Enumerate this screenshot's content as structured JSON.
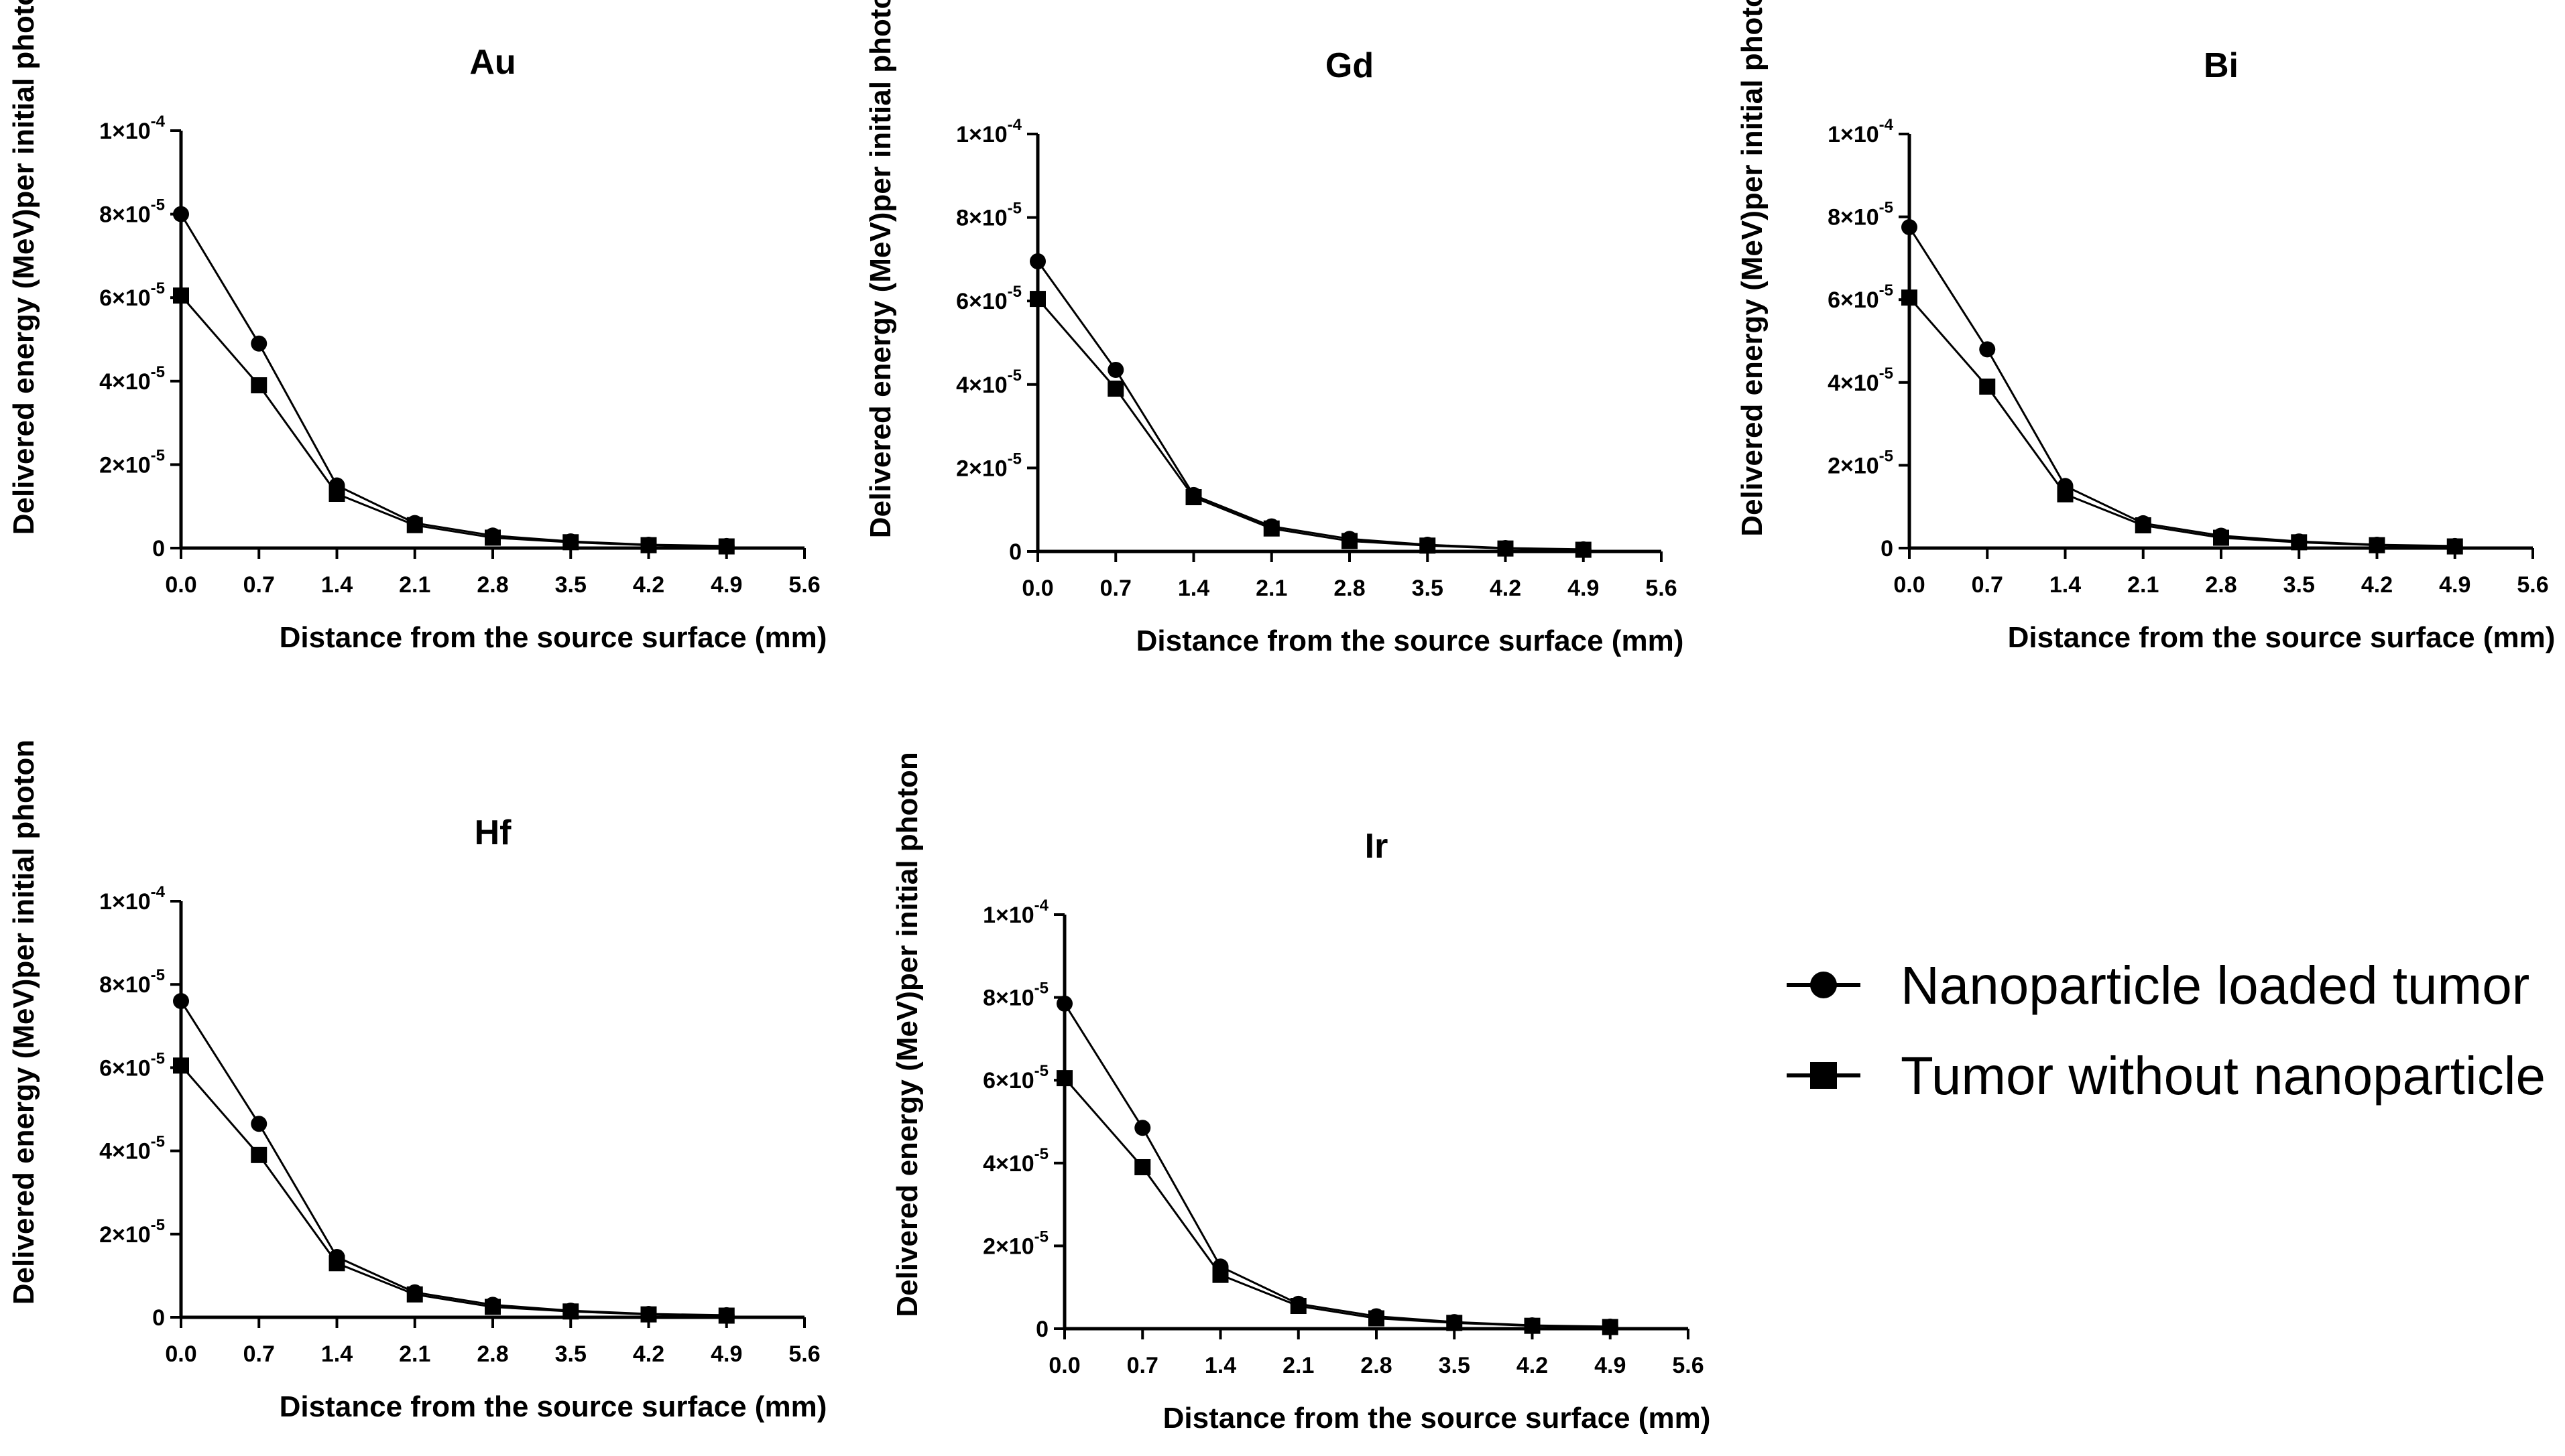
{
  "chart_data": [
    {
      "type": "line",
      "title": "Au",
      "xlabel": "Distance from the source surface (mm)",
      "ylabel": "Delivered energy (MeV)per initial photon",
      "x": [
        0.0,
        0.7,
        1.4,
        2.1,
        2.8,
        3.5,
        4.2,
        4.9
      ],
      "xticks": [
        "0.0",
        "0.7",
        "1.4",
        "2.1",
        "2.8",
        "3.5",
        "4.2",
        "4.9",
        "5.6"
      ],
      "xlim": [
        0,
        5.6
      ],
      "yticks": [
        {
          "base": "1×10",
          "exp": "-4"
        },
        {
          "base": "8×10",
          "exp": "-5"
        },
        {
          "base": "6×10",
          "exp": "-5"
        },
        {
          "base": "4×10",
          "exp": "-5"
        },
        {
          "base": "2×10",
          "exp": "-5"
        },
        {
          "base": "0",
          "exp": ""
        }
      ],
      "ylim": [
        0,
        0.0001
      ],
      "series": [
        {
          "name": "Nanoparticle loaded tumor",
          "marker": "circle",
          "values": [
            8e-05,
            4.9e-05,
            1.5e-05,
            6e-06,
            3e-06,
            1.6e-06,
            8e-07,
            5e-07
          ]
        },
        {
          "name": "Tumor without nanoparticle",
          "marker": "square",
          "values": [
            6.05e-05,
            3.9e-05,
            1.3e-05,
            5.5e-06,
            2.5e-06,
            1.4e-06,
            7e-07,
            4e-07
          ]
        }
      ]
    },
    {
      "type": "line",
      "title": "Gd",
      "xlabel": "Distance from the source surface (mm)",
      "ylabel": "Delivered energy (MeV)per initial photon",
      "x": [
        0.0,
        0.7,
        1.4,
        2.1,
        2.8,
        3.5,
        4.2,
        4.9
      ],
      "xticks": [
        "0.0",
        "0.7",
        "1.4",
        "2.1",
        "2.8",
        "3.5",
        "4.2",
        "4.9",
        "5.6"
      ],
      "xlim": [
        0,
        5.6
      ],
      "yticks": [
        {
          "base": "1×10",
          "exp": "-4"
        },
        {
          "base": "8×10",
          "exp": "-5"
        },
        {
          "base": "6×10",
          "exp": "-5"
        },
        {
          "base": "4×10",
          "exp": "-5"
        },
        {
          "base": "2×10",
          "exp": "-5"
        },
        {
          "base": "0",
          "exp": ""
        }
      ],
      "ylim": [
        0,
        0.0001
      ],
      "series": [
        {
          "name": "Nanoparticle loaded tumor",
          "marker": "circle",
          "values": [
            6.95e-05,
            4.35e-05,
            1.35e-05,
            6e-06,
            3e-06,
            1.6e-06,
            8e-07,
            5e-07
          ]
        },
        {
          "name": "Tumor without nanoparticle",
          "marker": "square",
          "values": [
            6.05e-05,
            3.9e-05,
            1.3e-05,
            5.5e-06,
            2.5e-06,
            1.4e-06,
            7e-07,
            4e-07
          ]
        }
      ]
    },
    {
      "type": "line",
      "title": "Bi",
      "xlabel": "Distance from the source surface (mm)",
      "ylabel": "Delivered energy (MeV)per initial photon",
      "x": [
        0.0,
        0.7,
        1.4,
        2.1,
        2.8,
        3.5,
        4.2,
        4.9
      ],
      "xticks": [
        "0.0",
        "0.7",
        "1.4",
        "2.1",
        "2.8",
        "3.5",
        "4.2",
        "4.9",
        "5.6"
      ],
      "xlim": [
        0,
        5.6
      ],
      "yticks": [
        {
          "base": "1×10",
          "exp": "-4"
        },
        {
          "base": "8×10",
          "exp": "-5"
        },
        {
          "base": "6×10",
          "exp": "-5"
        },
        {
          "base": "4×10",
          "exp": "-5"
        },
        {
          "base": "2×10",
          "exp": "-5"
        },
        {
          "base": "0",
          "exp": ""
        }
      ],
      "ylim": [
        0,
        0.0001
      ],
      "series": [
        {
          "name": "Nanoparticle loaded tumor",
          "marker": "circle",
          "values": [
            7.75e-05,
            4.8e-05,
            1.5e-05,
            6e-06,
            3e-06,
            1.6e-06,
            8e-07,
            5e-07
          ]
        },
        {
          "name": "Tumor without nanoparticle",
          "marker": "square",
          "values": [
            6.05e-05,
            3.9e-05,
            1.3e-05,
            5.5e-06,
            2.5e-06,
            1.4e-06,
            7e-07,
            4e-07
          ]
        }
      ]
    },
    {
      "type": "line",
      "title": "Hf",
      "xlabel": "Distance from the source surface (mm)",
      "ylabel": "Delivered energy (MeV)per initial photon",
      "x": [
        0.0,
        0.7,
        1.4,
        2.1,
        2.8,
        3.5,
        4.2,
        4.9
      ],
      "xticks": [
        "0.0",
        "0.7",
        "1.4",
        "2.1",
        "2.8",
        "3.5",
        "4.2",
        "4.9",
        "5.6"
      ],
      "xlim": [
        0,
        5.6
      ],
      "yticks": [
        {
          "base": "1×10",
          "exp": "-4"
        },
        {
          "base": "8×10",
          "exp": "-5"
        },
        {
          "base": "6×10",
          "exp": "-5"
        },
        {
          "base": "4×10",
          "exp": "-5"
        },
        {
          "base": "2×10",
          "exp": "-5"
        },
        {
          "base": "0",
          "exp": ""
        }
      ],
      "ylim": [
        0,
        0.0001
      ],
      "series": [
        {
          "name": "Nanoparticle loaded tumor",
          "marker": "circle",
          "values": [
            7.6e-05,
            4.65e-05,
            1.45e-05,
            6e-06,
            3e-06,
            1.6e-06,
            8e-07,
            5e-07
          ]
        },
        {
          "name": "Tumor without nanoparticle",
          "marker": "square",
          "values": [
            6.05e-05,
            3.9e-05,
            1.3e-05,
            5.5e-06,
            2.5e-06,
            1.4e-06,
            7e-07,
            4e-07
          ]
        }
      ]
    },
    {
      "type": "line",
      "title": "Ir",
      "xlabel": "Distance from the source surface (mm)",
      "ylabel": "Delivered energy (MeV)per initial photon",
      "x": [
        0.0,
        0.7,
        1.4,
        2.1,
        2.8,
        3.5,
        4.2,
        4.9
      ],
      "xticks": [
        "0.0",
        "0.7",
        "1.4",
        "2.1",
        "2.8",
        "3.5",
        "4.2",
        "4.9",
        "5.6"
      ],
      "xlim": [
        0,
        5.6
      ],
      "yticks": [
        {
          "base": "1×10",
          "exp": "-4"
        },
        {
          "base": "8×10",
          "exp": "-5"
        },
        {
          "base": "6×10",
          "exp": "-5"
        },
        {
          "base": "4×10",
          "exp": "-5"
        },
        {
          "base": "2×10",
          "exp": "-5"
        },
        {
          "base": "0",
          "exp": ""
        }
      ],
      "ylim": [
        0,
        0.0001
      ],
      "series": [
        {
          "name": "Nanoparticle loaded tumor",
          "marker": "circle",
          "values": [
            7.85e-05,
            4.85e-05,
            1.5e-05,
            6e-06,
            3e-06,
            1.6e-06,
            8e-07,
            5e-07
          ]
        },
        {
          "name": "Tumor without nanoparticle",
          "marker": "square",
          "values": [
            6.05e-05,
            3.9e-05,
            1.3e-05,
            5.5e-06,
            2.5e-06,
            1.4e-06,
            7e-07,
            4e-07
          ]
        }
      ]
    }
  ],
  "legend": {
    "position": "right-middle",
    "entries": [
      {
        "label": "Nanoparticle loaded tumor",
        "marker": "circle"
      },
      {
        "label": "Tumor without nanoparticle",
        "marker": "square"
      }
    ]
  },
  "colors": {
    "ink": "#000000",
    "background": "#ffffff"
  }
}
